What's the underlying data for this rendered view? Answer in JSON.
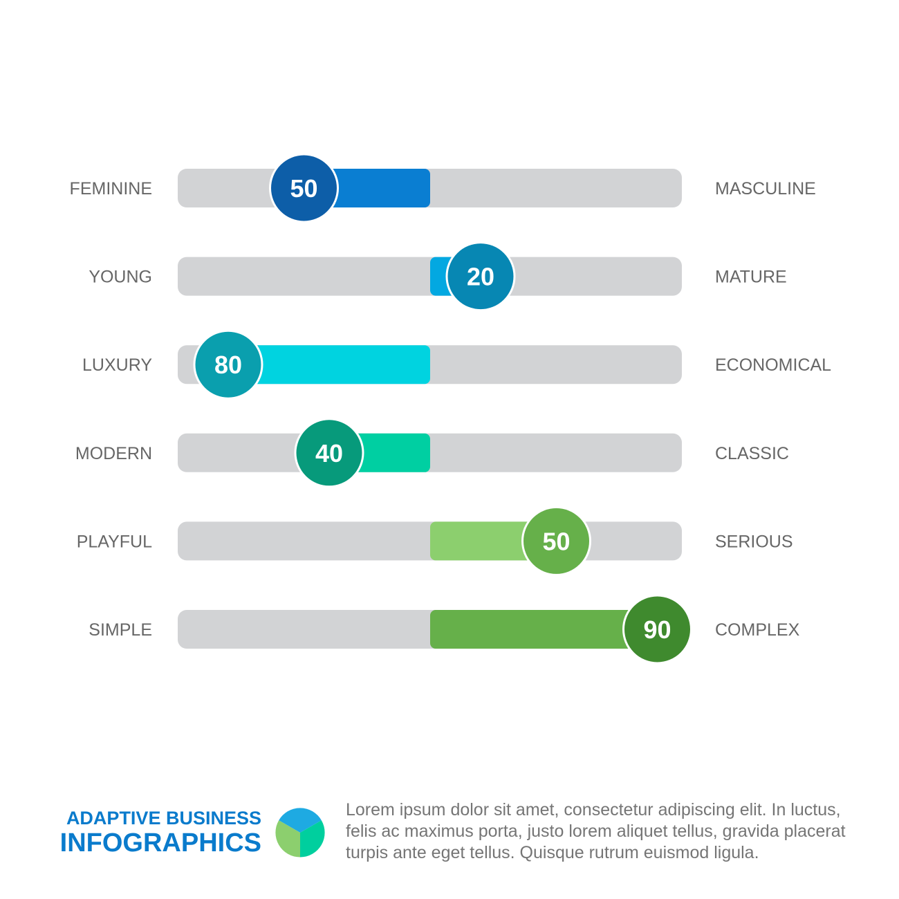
{
  "chart_data": {
    "type": "bar",
    "scale_min": -100,
    "scale_max": 100,
    "rows": [
      {
        "left_label": "FEMININE",
        "right_label": "MASCULINE",
        "value_label": "50",
        "value": -50,
        "color": "#0a7ed2",
        "badge_color": "#0d5ea8"
      },
      {
        "left_label": "YOUNG",
        "right_label": "MATURE",
        "value_label": "20",
        "value": 20,
        "color": "#03a8e1",
        "badge_color": "#0787b3"
      },
      {
        "left_label": "LUXURY",
        "right_label": "ECONOMICAL",
        "value_label": "80",
        "value": -80,
        "color": "#00d3e0",
        "badge_color": "#0a9fae"
      },
      {
        "left_label": "MODERN",
        "right_label": "CLASSIC",
        "value_label": "40",
        "value": -40,
        "color": "#00cfa2",
        "badge_color": "#079a7b"
      },
      {
        "left_label": "PLAYFUL",
        "right_label": "SERIOUS",
        "value_label": "50",
        "value": 50,
        "color": "#8ccf6e",
        "badge_color": "#66b04a"
      },
      {
        "left_label": "SIMPLE",
        "right_label": "COMPLEX",
        "value_label": "90",
        "value": 90,
        "color": "#66b04a",
        "badge_color": "#3f8a2e"
      }
    ],
    "track_color": "#d2d3d5"
  },
  "footer": {
    "brand_line1": "ADAPTIVE BUSINESS",
    "brand_line2": "INFOGRAPHICS",
    "body_text": "Lorem ipsum dolor sit amet, consectetur adipiscing elit. In luctus, felis ac maximus porta, justo lorem aliquet tellus, gravida placerat turpis ante eget tellus. Quisque rutrum euismod ligula.",
    "logo_colors": [
      "#1eaae2",
      "#00cf9e",
      "#8ccf6e"
    ]
  }
}
